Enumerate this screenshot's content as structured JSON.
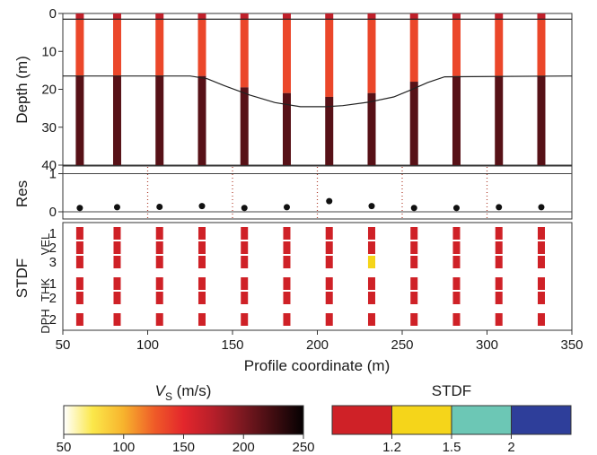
{
  "chart_data": {
    "type": "multi-panel-profile",
    "x": [
      60,
      82,
      107,
      132,
      157,
      182,
      207,
      232,
      257,
      282,
      307,
      332
    ],
    "xlim": [
      50,
      350
    ],
    "x_ticks": [
      50,
      100,
      150,
      200,
      250,
      300,
      350
    ],
    "xlabel": "Profile coordinate (m)",
    "panels": [
      {
        "name": "depth",
        "ylabel": "Depth (m)",
        "ylim": [
          0,
          40
        ],
        "y_ticks": [
          0,
          10,
          20,
          30,
          40
        ],
        "layer1_bottom": 1.5,
        "layer2_bottom": [
          16.5,
          16.5,
          16.5,
          16.5,
          19.5,
          21,
          22,
          21,
          18,
          16.5,
          16.5,
          16.5
        ],
        "vs_layers": [
          170,
          135,
          215
        ],
        "interface_curve": {
          "x": [
            50,
            125,
            135,
            145,
            160,
            175,
            190,
            205,
            215,
            230,
            245,
            255,
            265,
            275,
            350
          ],
          "depth": [
            16.5,
            16.5,
            17.2,
            19.0,
            21.5,
            23.5,
            24.6,
            24.6,
            24.3,
            23.4,
            22.0,
            20.2,
            18.2,
            16.7,
            16.5
          ]
        }
      },
      {
        "name": "residual",
        "ylabel": "Res",
        "ylim": [
          0,
          1.2
        ],
        "y_ticks": [
          0,
          1
        ],
        "values": [
          0.1,
          0.12,
          0.13,
          0.15,
          0.1,
          0.12,
          0.28,
          0.15,
          0.1,
          0.1,
          0.12,
          0.12
        ],
        "dotted_x": [
          100,
          150,
          200,
          250,
          300
        ]
      },
      {
        "name": "stdf",
        "ylabel": "STDF",
        "row_groups": [
          "VEL",
          "THK",
          "DPH"
        ],
        "row_labels": [
          "1",
          "2",
          "3",
          "1",
          "2",
          "2"
        ],
        "highlight": {
          "x": 232,
          "row": 2,
          "category": "1.2–1.5"
        }
      }
    ],
    "colorbars": [
      {
        "label_main": "V",
        "label_sub": "S",
        "label_unit": " (m/s)",
        "range": [
          50,
          250
        ],
        "ticks": [
          50,
          100,
          150,
          200,
          250
        ]
      },
      {
        "label": "STDF",
        "ticks": [
          "1.2",
          "1.5",
          "2"
        ],
        "colors": [
          "#cf2127",
          "#f5d51a",
          "#6cc7b5",
          "#2e3e9a"
        ]
      }
    ]
  }
}
